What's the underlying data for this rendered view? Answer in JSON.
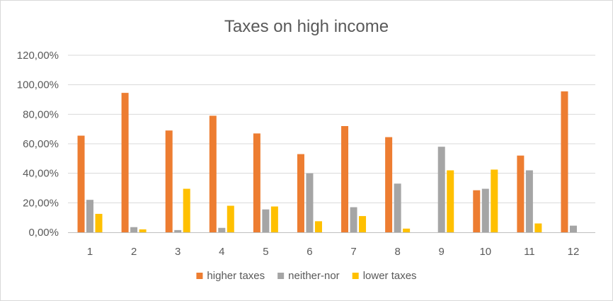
{
  "chart_data": {
    "type": "bar",
    "title": "Taxes on high income",
    "xlabel": "",
    "ylabel": "",
    "categories": [
      "1",
      "2",
      "3",
      "4",
      "5",
      "6",
      "7",
      "8",
      "9",
      "10",
      "11",
      "12"
    ],
    "y_ticks": [
      "0,00%",
      "20,00%",
      "40,00%",
      "60,00%",
      "80,00%",
      "100,00%",
      "120,00%"
    ],
    "ylim": [
      0,
      120
    ],
    "grid": true,
    "legend_position": "bottom",
    "series": [
      {
        "name": "higher taxes",
        "color": "#ED7D31",
        "values": [
          65.5,
          94.5,
          69,
          79,
          67,
          53,
          72,
          64.5,
          0,
          28.5,
          52,
          95.5
        ]
      },
      {
        "name": "neither-nor",
        "color": "#A5A5A5",
        "values": [
          22,
          3.5,
          1.5,
          3,
          15.5,
          40,
          17,
          33,
          58,
          29.5,
          42,
          4.5
        ]
      },
      {
        "name": "lower taxes",
        "color": "#FFC000",
        "values": [
          12.5,
          2,
          29.5,
          18,
          17.5,
          7.5,
          11,
          2.5,
          42,
          42.5,
          6,
          0
        ]
      }
    ]
  }
}
